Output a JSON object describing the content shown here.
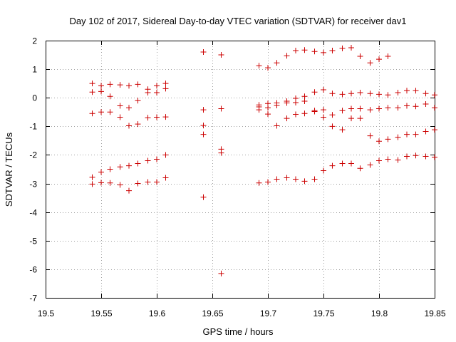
{
  "chart_data": {
    "type": "scatter",
    "title": "Day 102 of 2017, Sidereal Day-to-day VTEC variation (SDTVAR) for receiver dav1",
    "xlabel": "GPS time / hours",
    "ylabel": "SDTVAR / TECUs",
    "xlim": [
      19.5,
      19.85
    ],
    "ylim": [
      -7,
      2
    ],
    "xticks": [
      "19.5",
      "19.55",
      "19.6",
      "19.65",
      "19.7",
      "19.75",
      "19.8",
      "19.85"
    ],
    "yticks": [
      "-7",
      "-6",
      "-5",
      "-4",
      "-3",
      "-2",
      "-1",
      "0",
      "1",
      "2"
    ],
    "grid": true,
    "marker": "plus",
    "color": "#cc0000",
    "points": [
      [
        19.542,
        0.5
      ],
      [
        19.542,
        0.2
      ],
      [
        19.542,
        -0.55
      ],
      [
        19.542,
        -2.78
      ],
      [
        19.542,
        -3.02
      ],
      [
        19.55,
        0.42
      ],
      [
        19.55,
        0.22
      ],
      [
        19.55,
        -0.5
      ],
      [
        19.55,
        -2.6
      ],
      [
        19.55,
        -2.97
      ],
      [
        19.558,
        0.47
      ],
      [
        19.558,
        0.05
      ],
      [
        19.558,
        -0.5
      ],
      [
        19.558,
        -2.5
      ],
      [
        19.558,
        -2.98
      ],
      [
        19.567,
        0.45
      ],
      [
        19.567,
        -0.28
      ],
      [
        19.567,
        -0.68
      ],
      [
        19.567,
        -2.42
      ],
      [
        19.567,
        -3.05
      ],
      [
        19.575,
        0.42
      ],
      [
        19.575,
        -0.35
      ],
      [
        19.575,
        -0.98
      ],
      [
        19.575,
        -2.38
      ],
      [
        19.575,
        -3.25
      ],
      [
        19.583,
        0.47
      ],
      [
        19.583,
        -0.1
      ],
      [
        19.583,
        -0.92
      ],
      [
        19.583,
        -2.3
      ],
      [
        19.583,
        -3.0
      ],
      [
        19.592,
        0.3
      ],
      [
        19.592,
        0.18
      ],
      [
        19.592,
        -0.7
      ],
      [
        19.592,
        -2.2
      ],
      [
        19.592,
        -2.95
      ],
      [
        19.6,
        0.42
      ],
      [
        19.6,
        0.18
      ],
      [
        19.6,
        -0.68
      ],
      [
        19.6,
        -2.15
      ],
      [
        19.6,
        -2.95
      ],
      [
        19.608,
        0.5
      ],
      [
        19.608,
        0.32
      ],
      [
        19.608,
        -0.67
      ],
      [
        19.608,
        -2.0
      ],
      [
        19.608,
        -2.8
      ],
      [
        19.642,
        1.6
      ],
      [
        19.642,
        -0.42
      ],
      [
        19.642,
        -0.97
      ],
      [
        19.642,
        -1.28
      ],
      [
        19.642,
        -3.48
      ],
      [
        19.658,
        1.5
      ],
      [
        19.658,
        -0.38
      ],
      [
        19.658,
        -1.8
      ],
      [
        19.658,
        -1.93
      ],
      [
        19.658,
        -6.15
      ],
      [
        19.692,
        1.12
      ],
      [
        19.692,
        -0.25
      ],
      [
        19.692,
        -0.32
      ],
      [
        19.692,
        -0.42
      ],
      [
        19.692,
        -2.98
      ],
      [
        19.7,
        1.05
      ],
      [
        19.7,
        -0.2
      ],
      [
        19.7,
        -0.35
      ],
      [
        19.7,
        -0.57
      ],
      [
        19.7,
        -2.95
      ],
      [
        19.708,
        1.22
      ],
      [
        19.708,
        -0.18
      ],
      [
        19.708,
        -0.27
      ],
      [
        19.708,
        -0.98
      ],
      [
        19.708,
        -2.85
      ],
      [
        19.717,
        1.47
      ],
      [
        19.717,
        -0.12
      ],
      [
        19.717,
        -0.18
      ],
      [
        19.717,
        -0.72
      ],
      [
        19.717,
        -2.8
      ],
      [
        19.725,
        1.65
      ],
      [
        19.725,
        -0.02
      ],
      [
        19.725,
        -0.17
      ],
      [
        19.725,
        -0.58
      ],
      [
        19.725,
        -2.85
      ],
      [
        19.733,
        1.67
      ],
      [
        19.733,
        0.05
      ],
      [
        19.733,
        -0.12
      ],
      [
        19.733,
        -0.55
      ],
      [
        19.733,
        -2.92
      ],
      [
        19.742,
        1.62
      ],
      [
        19.742,
        0.2
      ],
      [
        19.742,
        -0.45
      ],
      [
        19.742,
        -0.48
      ],
      [
        19.742,
        -2.85
      ],
      [
        19.75,
        1.58
      ],
      [
        19.75,
        0.28
      ],
      [
        19.75,
        -0.42
      ],
      [
        19.75,
        -0.68
      ],
      [
        19.75,
        -2.55
      ],
      [
        19.758,
        1.65
      ],
      [
        19.758,
        0.15
      ],
      [
        19.758,
        -0.6
      ],
      [
        19.758,
        -1.0
      ],
      [
        19.758,
        -2.38
      ],
      [
        19.767,
        1.73
      ],
      [
        19.767,
        0.12
      ],
      [
        19.767,
        -0.45
      ],
      [
        19.767,
        -1.12
      ],
      [
        19.767,
        -2.3
      ],
      [
        19.775,
        1.75
      ],
      [
        19.775,
        0.15
      ],
      [
        19.775,
        -0.38
      ],
      [
        19.775,
        -0.72
      ],
      [
        19.775,
        -2.3
      ],
      [
        19.783,
        1.45
      ],
      [
        19.783,
        0.18
      ],
      [
        19.783,
        -0.38
      ],
      [
        19.783,
        -0.72
      ],
      [
        19.783,
        -2.47
      ],
      [
        19.792,
        1.22
      ],
      [
        19.792,
        0.15
      ],
      [
        19.792,
        -0.42
      ],
      [
        19.792,
        -1.33
      ],
      [
        19.792,
        -2.35
      ],
      [
        19.8,
        1.35
      ],
      [
        19.8,
        0.12
      ],
      [
        19.8,
        -0.38
      ],
      [
        19.8,
        -1.52
      ],
      [
        19.8,
        -2.2
      ],
      [
        19.808,
        1.45
      ],
      [
        19.808,
        0.1
      ],
      [
        19.808,
        -0.35
      ],
      [
        19.808,
        -1.45
      ],
      [
        19.808,
        -2.15
      ],
      [
        19.817,
        0.18
      ],
      [
        19.817,
        -0.35
      ],
      [
        19.817,
        -1.38
      ],
      [
        19.817,
        -2.18
      ],
      [
        19.825,
        0.25
      ],
      [
        19.825,
        -0.28
      ],
      [
        19.825,
        -1.28
      ],
      [
        19.825,
        -2.05
      ],
      [
        19.833,
        0.25
      ],
      [
        19.833,
        -0.3
      ],
      [
        19.833,
        -1.28
      ],
      [
        19.833,
        -2.02
      ],
      [
        19.842,
        0.15
      ],
      [
        19.842,
        -0.22
      ],
      [
        19.842,
        -1.18
      ],
      [
        19.842,
        -2.05
      ],
      [
        19.85,
        0.1
      ],
      [
        19.85,
        -0.35
      ],
      [
        19.85,
        -1.12
      ],
      [
        19.85,
        -2.08
      ]
    ]
  }
}
